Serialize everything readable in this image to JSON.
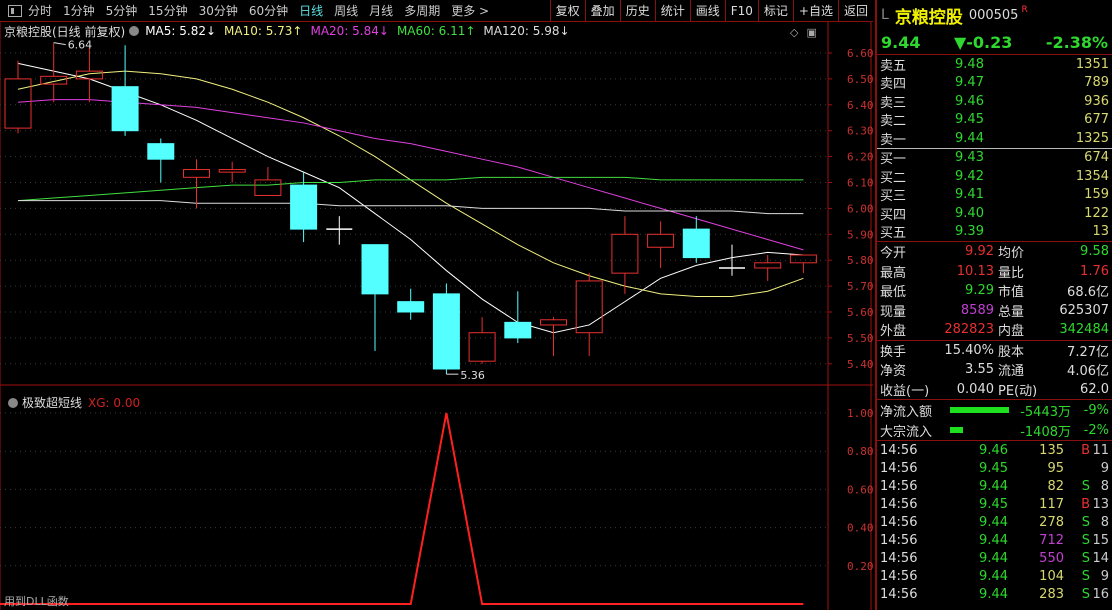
{
  "toolbar": {
    "periods": [
      "分时",
      "1分钟",
      "5分钟",
      "15分钟",
      "30分钟",
      "60分钟",
      "日线",
      "周线",
      "月线",
      "多周期",
      "更多 >"
    ],
    "active_period": "日线",
    "buttons": [
      "复权",
      "叠加",
      "历史",
      "统计",
      "画线",
      "F10",
      "标记",
      "+自选",
      "返回"
    ]
  },
  "legend": {
    "title": "京粮控股(日线 前复权)",
    "ma": [
      {
        "label": "MA5: 5.82↓",
        "color": "#ffffff"
      },
      {
        "label": "MA10: 5.73↑",
        "color": "#f0f080"
      },
      {
        "label": "MA20: 5.84↓",
        "color": "#e040e0"
      },
      {
        "label": "MA60: 6.11↑",
        "color": "#40e040"
      },
      {
        "label": "MA120: 5.98↓",
        "color": "#dddddd"
      }
    ]
  },
  "indicator": {
    "name": "极致超短线",
    "value_label": "XG: 0.00"
  },
  "footer_note": "用到DLL函数",
  "chart_data": [
    {
      "type": "candlestick",
      "ylim": [
        5.35,
        6.68
      ],
      "y_ticks": [
        "6.60",
        "6.50",
        "6.40",
        "6.30",
        "6.20",
        "6.10",
        "6.00",
        "5.90",
        "5.80",
        "5.70",
        "5.60",
        "5.50",
        "5.40"
      ],
      "grid": true,
      "up_color": "#e83030",
      "down_color": "#54ffff",
      "candles": [
        {
          "o": 6.31,
          "h": 6.57,
          "l": 6.29,
          "c": 6.5
        },
        {
          "o": 6.48,
          "h": 6.64,
          "l": 6.41,
          "c": 6.51
        },
        {
          "o": 6.5,
          "h": 6.62,
          "l": 6.41,
          "c": 6.53
        },
        {
          "o": 6.47,
          "h": 6.63,
          "l": 6.28,
          "c": 6.3
        },
        {
          "o": 6.25,
          "h": 6.27,
          "l": 6.1,
          "c": 6.19
        },
        {
          "o": 6.12,
          "h": 6.19,
          "l": 6.0,
          "c": 6.15
        },
        {
          "o": 6.14,
          "h": 6.18,
          "l": 6.1,
          "c": 6.15
        },
        {
          "o": 6.05,
          "h": 6.16,
          "l": 6.05,
          "c": 6.11
        },
        {
          "o": 6.09,
          "h": 6.14,
          "l": 5.87,
          "c": 5.92
        },
        {
          "o": 5.92,
          "h": 5.97,
          "l": 5.86,
          "c": 5.92
        },
        {
          "o": 5.86,
          "h": 5.86,
          "l": 5.45,
          "c": 5.67
        },
        {
          "o": 5.64,
          "h": 5.69,
          "l": 5.57,
          "c": 5.6
        },
        {
          "o": 5.67,
          "h": 5.71,
          "l": 5.36,
          "c": 5.38
        },
        {
          "o": 5.41,
          "h": 5.58,
          "l": 5.4,
          "c": 5.52
        },
        {
          "o": 5.56,
          "h": 5.68,
          "l": 5.48,
          "c": 5.5
        },
        {
          "o": 5.55,
          "h": 5.58,
          "l": 5.43,
          "c": 5.57
        },
        {
          "o": 5.52,
          "h": 5.75,
          "l": 5.43,
          "c": 5.72
        },
        {
          "o": 5.75,
          "h": 5.97,
          "l": 5.67,
          "c": 5.9
        },
        {
          "o": 5.85,
          "h": 5.95,
          "l": 5.77,
          "c": 5.9
        },
        {
          "o": 5.92,
          "h": 5.97,
          "l": 5.79,
          "c": 5.81
        },
        {
          "o": 5.77,
          "h": 5.86,
          "l": 5.74,
          "c": 5.77
        },
        {
          "o": 5.77,
          "h": 5.82,
          "l": 5.72,
          "c": 5.79
        },
        {
          "o": 5.79,
          "h": 5.82,
          "l": 5.75,
          "c": 5.82
        }
      ],
      "annotations": [
        {
          "text": "6.64",
          "index": 1
        },
        {
          "text": "5.36",
          "index": 12
        }
      ],
      "series": [
        {
          "name": "MA5",
          "color": "#ffffff",
          "values": [
            6.56,
            6.53,
            6.5,
            6.45,
            6.4,
            6.34,
            6.27,
            6.2,
            6.14,
            6.08,
            5.98,
            5.88,
            5.76,
            5.65,
            5.56,
            5.52,
            5.55,
            5.64,
            5.73,
            5.78,
            5.81,
            5.83,
            5.82
          ]
        },
        {
          "name": "MA10",
          "color": "#f0f080",
          "values": [
            6.46,
            6.49,
            6.52,
            6.53,
            6.52,
            6.5,
            6.46,
            6.41,
            6.35,
            6.28,
            6.2,
            6.11,
            6.02,
            5.94,
            5.86,
            5.79,
            5.74,
            5.7,
            5.67,
            5.66,
            5.66,
            5.68,
            5.73
          ]
        },
        {
          "name": "MA20",
          "color": "#e040e0",
          "values": [
            6.41,
            6.42,
            6.42,
            6.41,
            6.4,
            6.39,
            6.37,
            6.35,
            6.33,
            6.3,
            6.27,
            6.25,
            6.22,
            6.19,
            6.16,
            6.12,
            6.08,
            6.04,
            6.0,
            5.96,
            5.92,
            5.88,
            5.84
          ]
        },
        {
          "name": "MA60",
          "color": "#40e040",
          "values": [
            6.03,
            6.04,
            6.05,
            6.06,
            6.07,
            6.08,
            6.09,
            6.09,
            6.1,
            6.1,
            6.11,
            6.11,
            6.11,
            6.12,
            6.12,
            6.12,
            6.12,
            6.12,
            6.11,
            6.11,
            6.11,
            6.11,
            6.11
          ]
        },
        {
          "name": "MA120",
          "color": "#dddddd",
          "values": [
            6.03,
            6.03,
            6.03,
            6.03,
            6.03,
            6.02,
            6.02,
            6.02,
            6.02,
            6.01,
            6.01,
            6.01,
            6.01,
            6.0,
            6.0,
            6.0,
            6.0,
            5.99,
            5.99,
            5.99,
            5.99,
            5.98,
            5.98
          ]
        }
      ]
    },
    {
      "type": "line",
      "ylim": [
        0,
        1.05
      ],
      "y_ticks": [
        "1.00",
        "0.80",
        "0.60",
        "0.40",
        "0.20"
      ],
      "grid": true,
      "series": [
        {
          "name": "XG",
          "color": "#ff2020",
          "values": [
            0,
            0,
            0,
            0,
            0,
            0,
            0,
            0,
            0,
            0,
            0,
            0,
            1,
            0,
            0,
            0,
            0,
            0,
            0,
            0,
            0,
            0,
            0
          ]
        }
      ]
    }
  ],
  "quote": {
    "market_flag": "L",
    "name": "京粮控股",
    "code": "000505",
    "badge": "R",
    "price": "9.44",
    "change": "▼-0.23",
    "change_pct": "-2.38%"
  },
  "order_book": {
    "asks": [
      {
        "label": "卖五",
        "price": "9.48",
        "vol": "1351"
      },
      {
        "label": "卖四",
        "price": "9.47",
        "vol": "789"
      },
      {
        "label": "卖三",
        "price": "9.46",
        "vol": "936"
      },
      {
        "label": "卖二",
        "price": "9.45",
        "vol": "677"
      },
      {
        "label": "卖一",
        "price": "9.44",
        "vol": "1325"
      }
    ],
    "bids": [
      {
        "label": "买一",
        "price": "9.43",
        "vol": "674"
      },
      {
        "label": "买二",
        "price": "9.42",
        "vol": "1354"
      },
      {
        "label": "买三",
        "price": "9.41",
        "vol": "159"
      },
      {
        "label": "买四",
        "price": "9.40",
        "vol": "122"
      },
      {
        "label": "买五",
        "price": "9.39",
        "vol": "13"
      }
    ]
  },
  "stats": [
    {
      "k": "今开",
      "v": "9.92",
      "vc": "red",
      "k2": "均价",
      "v2": "9.58",
      "v2c": "green"
    },
    {
      "k": "最高",
      "v": "10.13",
      "vc": "red",
      "k2": "量比",
      "v2": "1.76",
      "v2c": "red"
    },
    {
      "k": "最低",
      "v": "9.29",
      "vc": "green",
      "k2": "市值",
      "v2": "68.6亿",
      "v2c": "white"
    },
    {
      "k": "现量",
      "v": "8589",
      "vc": "purple",
      "k2": "总量",
      "v2": "625307",
      "v2c": "white"
    },
    {
      "k": "外盘",
      "v": "282823",
      "vc": "red",
      "k2": "内盘",
      "v2": "342484",
      "v2c": "green"
    }
  ],
  "stats2": [
    {
      "k": "换手",
      "v": "15.40%",
      "vc": "white",
      "k2": "股本",
      "v2": "7.27亿",
      "v2c": "white"
    },
    {
      "k": "净资",
      "v": "3.55",
      "vc": "white",
      "k2": "流通",
      "v2": "4.06亿",
      "v2c": "white"
    },
    {
      "k": "收益(一)",
      "v": "0.040",
      "vc": "white",
      "k2": "PE(动)",
      "v2": "62.0",
      "v2c": "white"
    }
  ],
  "flows": [
    {
      "label": "净流入额",
      "value": "-5443万",
      "pct": "-9%",
      "bar_pct": 9
    },
    {
      "label": "大宗流入",
      "value": "-1408万",
      "pct": "-2%",
      "bar_pct": 2
    }
  ],
  "trades": [
    {
      "t": "14:56",
      "p": "9.46",
      "v": "135",
      "bs": "B",
      "n": "11",
      "vc": "yellow"
    },
    {
      "t": "14:56",
      "p": "9.45",
      "v": "95",
      "bs": "",
      "n": "9",
      "vc": "yellow"
    },
    {
      "t": "14:56",
      "p": "9.44",
      "v": "82",
      "bs": "S",
      "n": "8",
      "vc": "yellow"
    },
    {
      "t": "14:56",
      "p": "9.45",
      "v": "117",
      "bs": "B",
      "n": "13",
      "vc": "yellow"
    },
    {
      "t": "14:56",
      "p": "9.44",
      "v": "278",
      "bs": "S",
      "n": "8",
      "vc": "yellow"
    },
    {
      "t": "14:56",
      "p": "9.44",
      "v": "712",
      "bs": "S",
      "n": "15",
      "vc": "purple"
    },
    {
      "t": "14:56",
      "p": "9.44",
      "v": "550",
      "bs": "S",
      "n": "14",
      "vc": "purple"
    },
    {
      "t": "14:56",
      "p": "9.44",
      "v": "104",
      "bs": "S",
      "n": "9",
      "vc": "yellow"
    },
    {
      "t": "14:56",
      "p": "9.44",
      "v": "283",
      "bs": "S",
      "n": "16",
      "vc": "yellow"
    }
  ]
}
